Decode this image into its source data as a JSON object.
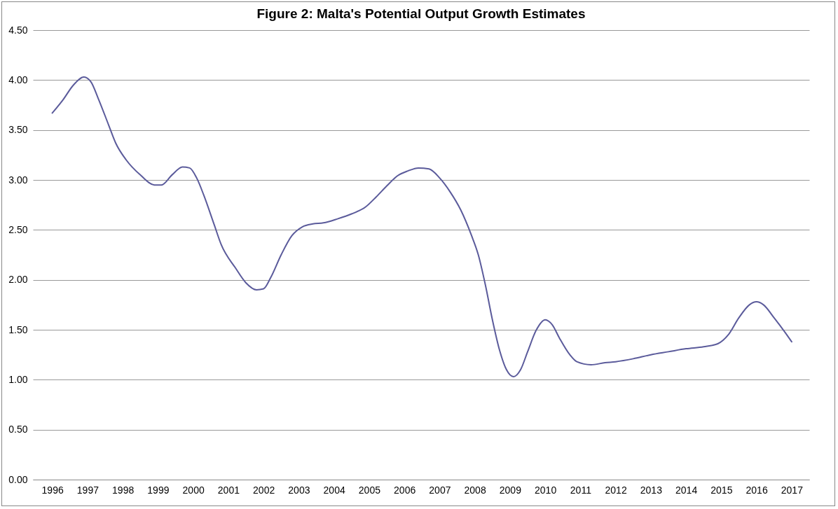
{
  "chart_data": {
    "type": "line",
    "title": "Figure 2: Malta's Potential Output Growth Estimates",
    "x": [
      1996.0,
      1996.3,
      1996.6,
      1996.9,
      1997.1,
      1997.3,
      1997.6,
      1997.8,
      1998.1,
      1998.5,
      1998.9,
      1999.1,
      1999.4,
      1999.7,
      1999.9,
      2000.1,
      2000.3,
      2000.6,
      2000.8,
      2001.2,
      2001.5,
      2001.8,
      2002.0,
      2002.2,
      2002.5,
      2002.8,
      2003.1,
      2003.4,
      2003.7,
      2004.1,
      2004.5,
      2004.9,
      2005.2,
      2005.5,
      2005.8,
      2006.1,
      2006.4,
      2006.7,
      2007.0,
      2007.3,
      2007.6,
      2007.9,
      2008.1,
      2008.3,
      2008.5,
      2008.7,
      2008.9,
      2009.1,
      2009.3,
      2009.5,
      2009.75,
      2010.0,
      2010.2,
      2010.4,
      2010.7,
      2010.9,
      2011.3,
      2011.7,
      2012.0,
      2012.5,
      2013.0,
      2013.5,
      2014.0,
      2014.5,
      2014.9,
      2015.2,
      2015.5,
      2015.8,
      2016.0,
      2016.2,
      2016.5,
      2016.8,
      2017.0
    ],
    "series": [
      {
        "color": "#5b5b9b",
        "values": [
          3.67,
          3.8,
          3.95,
          4.03,
          3.98,
          3.82,
          3.55,
          3.37,
          3.2,
          3.05,
          2.95,
          2.95,
          3.05,
          3.13,
          3.12,
          3.02,
          2.85,
          2.55,
          2.35,
          2.12,
          1.97,
          1.9,
          1.91,
          2.02,
          2.25,
          2.44,
          2.53,
          2.56,
          2.57,
          2.61,
          2.66,
          2.73,
          2.83,
          2.94,
          3.04,
          3.09,
          3.12,
          3.11,
          3.02,
          2.88,
          2.7,
          2.45,
          2.25,
          1.95,
          1.6,
          1.3,
          1.1,
          1.03,
          1.1,
          1.28,
          1.5,
          1.6,
          1.55,
          1.42,
          1.25,
          1.18,
          1.15,
          1.17,
          1.18,
          1.21,
          1.25,
          1.28,
          1.31,
          1.33,
          1.36,
          1.45,
          1.62,
          1.75,
          1.78,
          1.75,
          1.62,
          1.48,
          1.38
        ]
      }
    ],
    "xlim": [
      1995.45,
      2017.5
    ],
    "xticks": [
      1996,
      1997,
      1998,
      1999,
      2000,
      2001,
      2002,
      2003,
      2004,
      2005,
      2006,
      2007,
      2008,
      2009,
      2010,
      2011,
      2012,
      2013,
      2014,
      2015,
      2016,
      2017
    ],
    "ylim": [
      0,
      4.5
    ],
    "yticks": [
      {
        "value": 0,
        "label": "0.00"
      },
      {
        "value": 0.5,
        "label": "0.50"
      },
      {
        "value": 1,
        "label": "1.00"
      },
      {
        "value": 1.5,
        "label": "1.50"
      },
      {
        "value": 2,
        "label": "2.00"
      },
      {
        "value": 2.5,
        "label": "2.50"
      },
      {
        "value": 3,
        "label": "3.00"
      },
      {
        "value": 3.5,
        "label": "3.50"
      },
      {
        "value": 4,
        "label": "4.00"
      },
      {
        "value": 4.5,
        "label": "4.50"
      }
    ],
    "grid": "y",
    "legend": false,
    "marker": "none",
    "line_style": "solid"
  }
}
